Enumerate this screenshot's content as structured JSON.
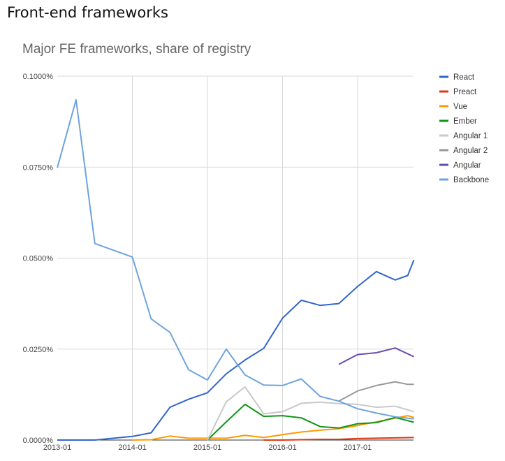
{
  "page": {
    "heading": "Front-end frameworks"
  },
  "chart_data": {
    "type": "line",
    "title": "Major FE frameworks, share of registry",
    "xlabel": "",
    "ylabel": "",
    "x_range": [
      "2013-01",
      "2017-10"
    ],
    "ylim": [
      0,
      0.1
    ],
    "y_ticks": [
      0,
      0.025,
      0.05,
      0.075,
      0.1
    ],
    "y_tick_labels": [
      "0.0000%",
      "0.0250%",
      "0.0500%",
      "0.0750%",
      "0.1000%"
    ],
    "x_ticks": [
      "2013-01",
      "2014-01",
      "2015-01",
      "2016-01",
      "2017-01"
    ],
    "grid": true,
    "legend_position": "right",
    "series": [
      {
        "name": "React",
        "color": "#3366cc",
        "points": [
          [
            "2013-01",
            0
          ],
          [
            "2013-04",
            0
          ],
          [
            "2013-07",
            0
          ],
          [
            "2013-10",
            0.0005
          ],
          [
            "2014-01",
            0.001
          ],
          [
            "2014-04",
            0.002
          ],
          [
            "2014-07",
            0.009
          ],
          [
            "2014-10",
            0.0112
          ],
          [
            "2015-01",
            0.013
          ],
          [
            "2015-04",
            0.0182
          ],
          [
            "2015-07",
            0.022
          ],
          [
            "2015-10",
            0.0252
          ],
          [
            "2016-01",
            0.0335
          ],
          [
            "2016-04",
            0.0384
          ],
          [
            "2016-07",
            0.037
          ],
          [
            "2016-10",
            0.0375
          ],
          [
            "2017-01",
            0.0422
          ],
          [
            "2017-04",
            0.0463
          ],
          [
            "2017-07",
            0.044
          ],
          [
            "2017-09",
            0.0452
          ],
          [
            "2017-10",
            0.0495
          ]
        ]
      },
      {
        "name": "Preact",
        "color": "#dc3912",
        "points": [
          [
            "2015-10",
            0
          ],
          [
            "2016-01",
            0
          ],
          [
            "2016-04",
            0.0001
          ],
          [
            "2016-07",
            0.0002
          ],
          [
            "2016-10",
            0.0002
          ],
          [
            "2017-01",
            0.0004
          ],
          [
            "2017-04",
            0.0005
          ],
          [
            "2017-07",
            0.0006
          ],
          [
            "2017-10",
            0.0007
          ]
        ]
      },
      {
        "name": "Vue",
        "color": "#ff9900",
        "points": [
          [
            "2014-01",
            0
          ],
          [
            "2014-04",
            0.0001
          ],
          [
            "2014-07",
            0.0011
          ],
          [
            "2014-10",
            0.0005
          ],
          [
            "2015-01",
            0.0005
          ],
          [
            "2015-04",
            0.0005
          ],
          [
            "2015-07",
            0.0013
          ],
          [
            "2015-10",
            0.0007
          ],
          [
            "2016-01",
            0.0015
          ],
          [
            "2016-04",
            0.0022
          ],
          [
            "2016-07",
            0.0027
          ],
          [
            "2016-10",
            0.0031
          ],
          [
            "2017-01",
            0.004
          ],
          [
            "2017-04",
            0.005
          ],
          [
            "2017-07",
            0.006
          ],
          [
            "2017-09",
            0.0067
          ],
          [
            "2017-10",
            0.0062
          ]
        ]
      },
      {
        "name": "Ember",
        "color": "#109618",
        "points": [
          [
            "2015-01",
            0
          ],
          [
            "2015-04",
            0.005
          ],
          [
            "2015-07",
            0.0098
          ],
          [
            "2015-10",
            0.0065
          ],
          [
            "2016-01",
            0.0067
          ],
          [
            "2016-04",
            0.0061
          ],
          [
            "2016-07",
            0.0037
          ],
          [
            "2016-10",
            0.0033
          ],
          [
            "2017-01",
            0.0045
          ],
          [
            "2017-04",
            0.0048
          ],
          [
            "2017-07",
            0.0062
          ],
          [
            "2017-10",
            0.0049
          ]
        ]
      },
      {
        "name": "Angular 1",
        "color": "#c9c9c9",
        "points": [
          [
            "2015-01",
            0
          ],
          [
            "2015-04",
            0.0105
          ],
          [
            "2015-07",
            0.0146
          ],
          [
            "2015-10",
            0.0072
          ],
          [
            "2016-01",
            0.0078
          ],
          [
            "2016-04",
            0.0101
          ],
          [
            "2016-07",
            0.0104
          ],
          [
            "2016-10",
            0.01
          ],
          [
            "2017-01",
            0.0098
          ],
          [
            "2017-04",
            0.009
          ],
          [
            "2017-07",
            0.0093
          ],
          [
            "2017-10",
            0.0078
          ]
        ]
      },
      {
        "name": "Angular 2",
        "color": "#999999",
        "points": [
          [
            "2016-10",
            0.0107
          ],
          [
            "2017-01",
            0.0135
          ],
          [
            "2017-04",
            0.015
          ],
          [
            "2017-07",
            0.016
          ],
          [
            "2017-09",
            0.0153
          ],
          [
            "2017-10",
            0.0153
          ]
        ]
      },
      {
        "name": "Angular",
        "color": "#6a4dab",
        "points": [
          [
            "2016-10",
            0.0208
          ],
          [
            "2017-01",
            0.0235
          ],
          [
            "2017-04",
            0.024
          ],
          [
            "2017-07",
            0.0253
          ],
          [
            "2017-10",
            0.0229
          ]
        ]
      },
      {
        "name": "Backbone",
        "color": "#6fa3dd",
        "points": [
          [
            "2013-01",
            0.0748
          ],
          [
            "2013-04",
            0.0935
          ],
          [
            "2013-07",
            0.054
          ],
          [
            "2014-01",
            0.0503
          ],
          [
            "2014-04",
            0.0333
          ],
          [
            "2014-07",
            0.0296
          ],
          [
            "2014-10",
            0.0193
          ],
          [
            "2015-01",
            0.0165
          ],
          [
            "2015-04",
            0.025
          ],
          [
            "2015-07",
            0.0179
          ],
          [
            "2015-10",
            0.0151
          ],
          [
            "2016-01",
            0.015
          ],
          [
            "2016-04",
            0.0168
          ],
          [
            "2016-07",
            0.012
          ],
          [
            "2016-10",
            0.0107
          ],
          [
            "2017-01",
            0.0086
          ],
          [
            "2017-04",
            0.0074
          ],
          [
            "2017-07",
            0.0064
          ],
          [
            "2017-10",
            0.0058
          ]
        ]
      }
    ]
  }
}
